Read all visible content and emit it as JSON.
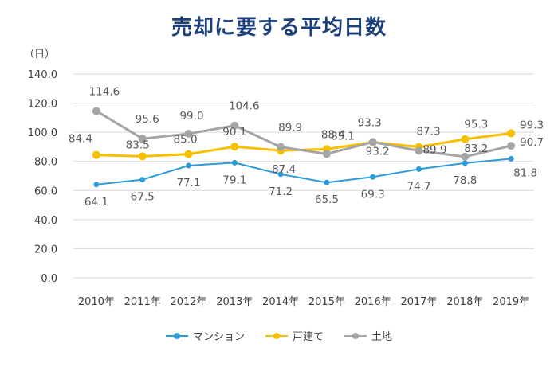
{
  "chart_data": {
    "type": "line",
    "title": "売却に要する平均日数",
    "unit_label": "（日）",
    "categories": [
      "2010年",
      "2011年",
      "2012年",
      "2013年",
      "2014年",
      "2015年",
      "2016年",
      "2017年",
      "2018年",
      "2019年"
    ],
    "ylim": [
      0,
      140
    ],
    "yticks": [
      "0.0",
      "20.0",
      "40.0",
      "60.0",
      "80.0",
      "100.0",
      "120.0",
      "140.0"
    ],
    "grid": true,
    "legend_position": "bottom",
    "series": [
      {
        "name": "マンション",
        "color": "#2e9bd6",
        "values": [
          64.1,
          67.5,
          77.1,
          79.1,
          71.2,
          65.5,
          69.3,
          74.7,
          78.8,
          81.8
        ]
      },
      {
        "name": "戸建て",
        "color": "#f6c000",
        "values": [
          84.4,
          83.5,
          85.0,
          90.1,
          87.4,
          88.4,
          93.2,
          89.9,
          95.3,
          99.3
        ]
      },
      {
        "name": "土地",
        "color": "#a5a5a5",
        "values": [
          114.6,
          95.6,
          99.0,
          104.6,
          89.9,
          85.1,
          93.3,
          87.3,
          83.2,
          90.7
        ]
      }
    ]
  }
}
